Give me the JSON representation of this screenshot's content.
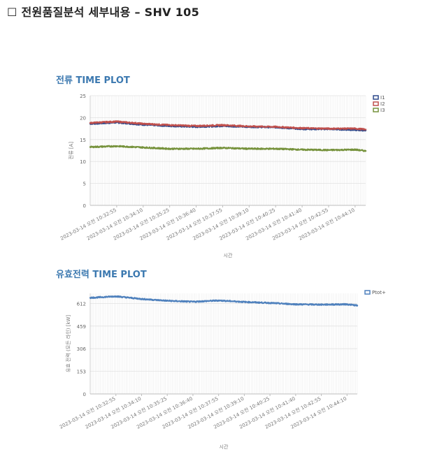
{
  "page": {
    "title_box": "☐",
    "title": "전원품질분석 세부내용 – SHV 105"
  },
  "chart_data": [
    {
      "type": "line",
      "title": "전류 TIME PLOT",
      "xlabel": "시간",
      "ylabel": "전류 [A]",
      "ylim": [
        0,
        25
      ],
      "yticks": [
        0,
        5,
        10,
        15,
        20,
        25
      ],
      "xticks": [
        "2023-03-14 오전 10:32:55",
        "2023-03-14 오전 10:34:10",
        "2023-03-14 오전 10:35:25",
        "2023-03-14 오전 10:36:40",
        "2023-03-14 오전 10:37:55",
        "2023-03-14 오전 10:39:10",
        "2023-03-14 오전 10:40:25",
        "2023-03-14 오전 10:41:40",
        "2023-03-14 오전 10:42:55",
        "2023-03-14 오전 10:44:10"
      ],
      "x": [
        "10:31:40",
        "10:32:55",
        "10:34:10",
        "10:35:25",
        "10:36:40",
        "10:37:55",
        "10:39:10",
        "10:40:25",
        "10:41:40",
        "10:42:55",
        "10:44:10",
        "10:44:40"
      ],
      "grid": true,
      "legend": "right",
      "series": [
        {
          "name": "I1",
          "color": "#2e4a8c",
          "values": [
            18.6,
            18.9,
            18.4,
            18.1,
            17.9,
            18.1,
            17.9,
            17.8,
            17.4,
            17.4,
            17.2,
            17.1
          ]
        },
        {
          "name": "I2",
          "color": "#c0504d",
          "values": [
            18.8,
            19.1,
            18.6,
            18.3,
            18.1,
            18.3,
            18.0,
            17.9,
            17.6,
            17.5,
            17.5,
            17.3
          ]
        },
        {
          "name": "I3",
          "color": "#76923c",
          "values": [
            13.3,
            13.5,
            13.2,
            12.9,
            12.9,
            13.1,
            12.9,
            12.9,
            12.7,
            12.6,
            12.7,
            12.4
          ]
        }
      ]
    },
    {
      "type": "line",
      "title": "유효전력 TIME PLOT",
      "xlabel": "시간",
      "ylabel": "유효 전력 (모든 라인) [kW]",
      "ylim": [
        0,
        680
      ],
      "yticks": [
        0,
        153,
        306,
        459,
        612
      ],
      "xticks": [
        "2023-03-14 오전 10:32:55",
        "2023-03-14 오전 10:34:10",
        "2023-03-14 오전 10:35:25",
        "2023-03-14 오전 10:36:40",
        "2023-03-14 오전 10:37:55",
        "2023-03-14 오전 10:39:10",
        "2023-03-14 오전 10:40:25",
        "2023-03-14 오전 10:41:40",
        "2023-03-14 오전 10:42:55",
        "2023-03-14 오전 10:44:10"
      ],
      "x": [
        "10:31:40",
        "10:32:55",
        "10:34:10",
        "10:35:25",
        "10:36:40",
        "10:37:55",
        "10:39:10",
        "10:40:25",
        "10:41:40",
        "10:42:55",
        "10:44:10",
        "10:44:40"
      ],
      "grid": true,
      "legend": "right",
      "series": [
        {
          "name": "Ptot+",
          "color": "#4f81bd",
          "values": [
            650,
            660,
            642,
            630,
            623,
            632,
            622,
            615,
            606,
            604,
            606,
            598
          ]
        }
      ]
    }
  ]
}
